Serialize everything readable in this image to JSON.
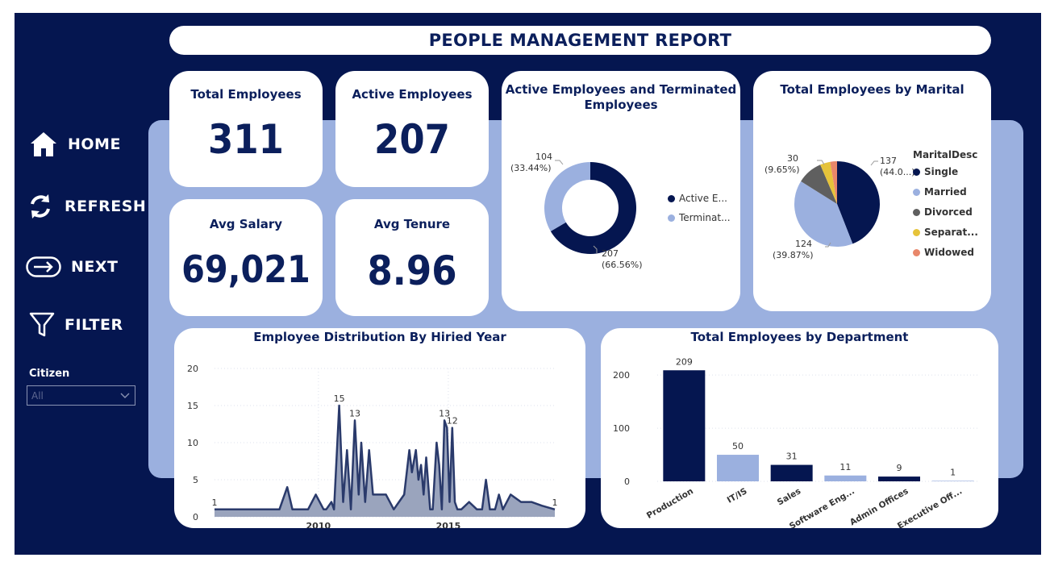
{
  "header": {
    "title": "PEOPLE MANAGEMENT REPORT"
  },
  "nav": {
    "home": "HOME",
    "refresh": "REFRESH",
    "next": "NEXT",
    "filter": "FILTER"
  },
  "slicer": {
    "label": "Citizen",
    "value": "All"
  },
  "kpis": {
    "total_employees": {
      "label": "Total Employees",
      "value": "311"
    },
    "active_employees": {
      "label": "Active Employees",
      "value": "207"
    },
    "avg_salary": {
      "label": "Avg Salary",
      "value": "69,021"
    },
    "avg_tenure": {
      "label": "Avg Tenure",
      "value": "8.96"
    }
  },
  "colors": {
    "navy": "#051650",
    "light_blue": "#9bb0df",
    "dark_gray": "#5f5f5f",
    "yellow": "#e6c33a",
    "orange": "#e8876a"
  },
  "chart_data": [
    {
      "type": "pie",
      "subtype": "donut",
      "title": "Active Employees and Terminated Employees",
      "title_line1": "Active Employees and Terminated",
      "title_line2": "Employees",
      "legend_position": "right",
      "slices": [
        {
          "name": "Active E...",
          "value": 207,
          "label_value": "207",
          "label_pct": "(66.56%)",
          "color": "#051650"
        },
        {
          "name": "Terminat...",
          "value": 104,
          "label_value": "104",
          "label_pct": "(33.44%)",
          "color": "#9bb0df"
        }
      ]
    },
    {
      "type": "pie",
      "title": "Total Employees by Marital",
      "legend_title": "MaritalDesc",
      "legend_position": "right",
      "slices": [
        {
          "name": "Single",
          "value": 137,
          "label_value": "137",
          "label_pct": "(44.0...)",
          "color": "#051650"
        },
        {
          "name": "Married",
          "value": 124,
          "label_value": "124",
          "label_pct": "(39.87%)",
          "color": "#9bb0df"
        },
        {
          "name": "Divorced",
          "value": 30,
          "label_value": "30",
          "label_pct": "(9.65%)",
          "color": "#5f5f5f"
        },
        {
          "name": "Separat...",
          "value": 12,
          "color": "#e6c33a"
        },
        {
          "name": "Widowed",
          "value": 8,
          "color": "#e8876a"
        }
      ]
    },
    {
      "type": "area",
      "title": "Employee Distribution By Hiried Year",
      "xlim": [
        2006.0,
        2019.1
      ],
      "ylim": [
        0,
        20
      ],
      "yticks": [
        0,
        5,
        10,
        15,
        20
      ],
      "xticks": [
        2010,
        2015
      ],
      "grid": true,
      "x": [
        2006.0,
        2006.5,
        2007.0,
        2007.5,
        2008.0,
        2008.5,
        2008.8,
        2009.0,
        2009.3,
        2009.6,
        2009.9,
        2010.2,
        2010.3,
        2010.5,
        2010.6,
        2010.8,
        2010.95,
        2011.1,
        2011.25,
        2011.4,
        2011.55,
        2011.65,
        2011.8,
        2011.95,
        2012.1,
        2012.3,
        2012.6,
        2012.9,
        2013.1,
        2013.3,
        2013.5,
        2013.6,
        2013.75,
        2013.85,
        2013.95,
        2014.05,
        2014.15,
        2014.3,
        2014.4,
        2014.55,
        2014.65,
        2014.75,
        2014.85,
        2014.95,
        2015.05,
        2015.15,
        2015.25,
        2015.35,
        2015.5,
        2015.8,
        2016.1,
        2016.3,
        2016.45,
        2016.6,
        2016.8,
        2016.95,
        2017.1,
        2017.4,
        2017.8,
        2018.2,
        2018.6,
        2019.1
      ],
      "y": [
        1,
        1,
        1,
        1,
        1,
        1,
        4,
        1,
        1,
        1,
        3,
        1,
        1,
        2,
        1,
        15,
        2,
        9,
        1,
        13,
        3,
        10,
        2,
        9,
        3,
        3,
        3,
        1,
        2,
        3,
        9,
        6,
        9,
        5,
        7,
        3,
        8,
        1,
        1,
        10,
        7,
        1,
        13,
        12,
        2,
        12,
        2,
        1,
        1,
        2,
        1,
        1,
        5,
        1,
        1,
        3,
        1,
        3,
        2,
        2,
        1.5,
        1
      ],
      "data_labels": [
        {
          "x": 2006.0,
          "y": 1,
          "text": "1"
        },
        {
          "x": 2010.8,
          "y": 15,
          "text": "15"
        },
        {
          "x": 2011.4,
          "y": 13,
          "text": "13"
        },
        {
          "x": 2014.85,
          "y": 13,
          "text": "13"
        },
        {
          "x": 2015.15,
          "y": 12,
          "text": "12"
        },
        {
          "x": 2019.1,
          "y": 1,
          "text": "1"
        }
      ]
    },
    {
      "type": "bar",
      "title": "Total Employees by Department",
      "categories": [
        "Production",
        "IT/IS",
        "Sales",
        "Software Eng...",
        "Admin Offices",
        "Executive Off..."
      ],
      "values": [
        209,
        50,
        31,
        11,
        9,
        1
      ],
      "colors": [
        "#051650",
        "#9bb0df",
        "#051650",
        "#9bb0df",
        "#051650",
        "#9bb0df"
      ],
      "ylim": [
        0,
        220
      ],
      "yticks": [
        0,
        100,
        200
      ],
      "grid": true
    }
  ]
}
